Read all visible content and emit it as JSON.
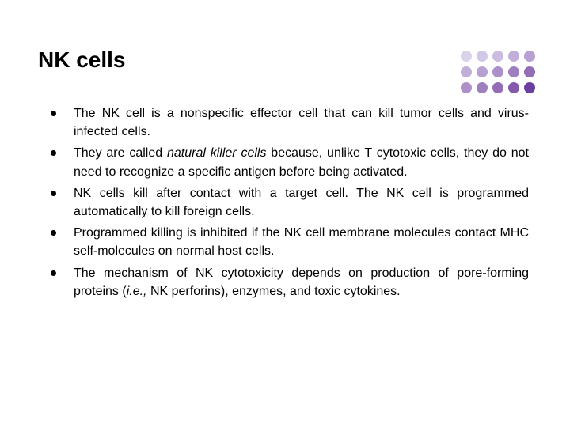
{
  "slide": {
    "title": "NK cells",
    "background_color": "#ffffff",
    "title_fontsize": 28,
    "title_color": "#000000",
    "body_fontsize": 16,
    "body_color": "#000000",
    "bullets": [
      {
        "html": "The NK cell is a nonspecific effector cell that can kill tumor cells and virus-infected cells."
      },
      {
        "html": "They are called <span class=\"italic\">natural killer cells</span> because, unlike T cytotoxic cells, they do not need to recognize a specific antigen before being activated."
      },
      {
        "html": "NK cells kill after contact with a target cell. The NK cell is programmed automatically to kill foreign cells."
      },
      {
        "html": "Programmed killing is inhibited if the NK cell membrane molecules contact MHC self-molecules on normal host cells."
      },
      {
        "html": "The mechanism of NK cytotoxicity depends on production of pore-forming proteins (<span class=\"italic\">i.e.,</span> NK perforins), enzymes, and toxic cytokines."
      }
    ]
  },
  "decoration": {
    "divider_color": "#999999",
    "dot_grid": {
      "rows": 3,
      "cols": 5,
      "dot_size": 14,
      "gap": 6,
      "colors": [
        "#d9d2e9",
        "#d3c7e6",
        "#cbbce0",
        "#c2afd9",
        "#b8a0d2",
        "#c2afd9",
        "#b8a0d2",
        "#ad90ca",
        "#a07fc0",
        "#936db6",
        "#ad90ca",
        "#a07fc0",
        "#936db6",
        "#855aab",
        "#6b3fa0"
      ]
    }
  }
}
